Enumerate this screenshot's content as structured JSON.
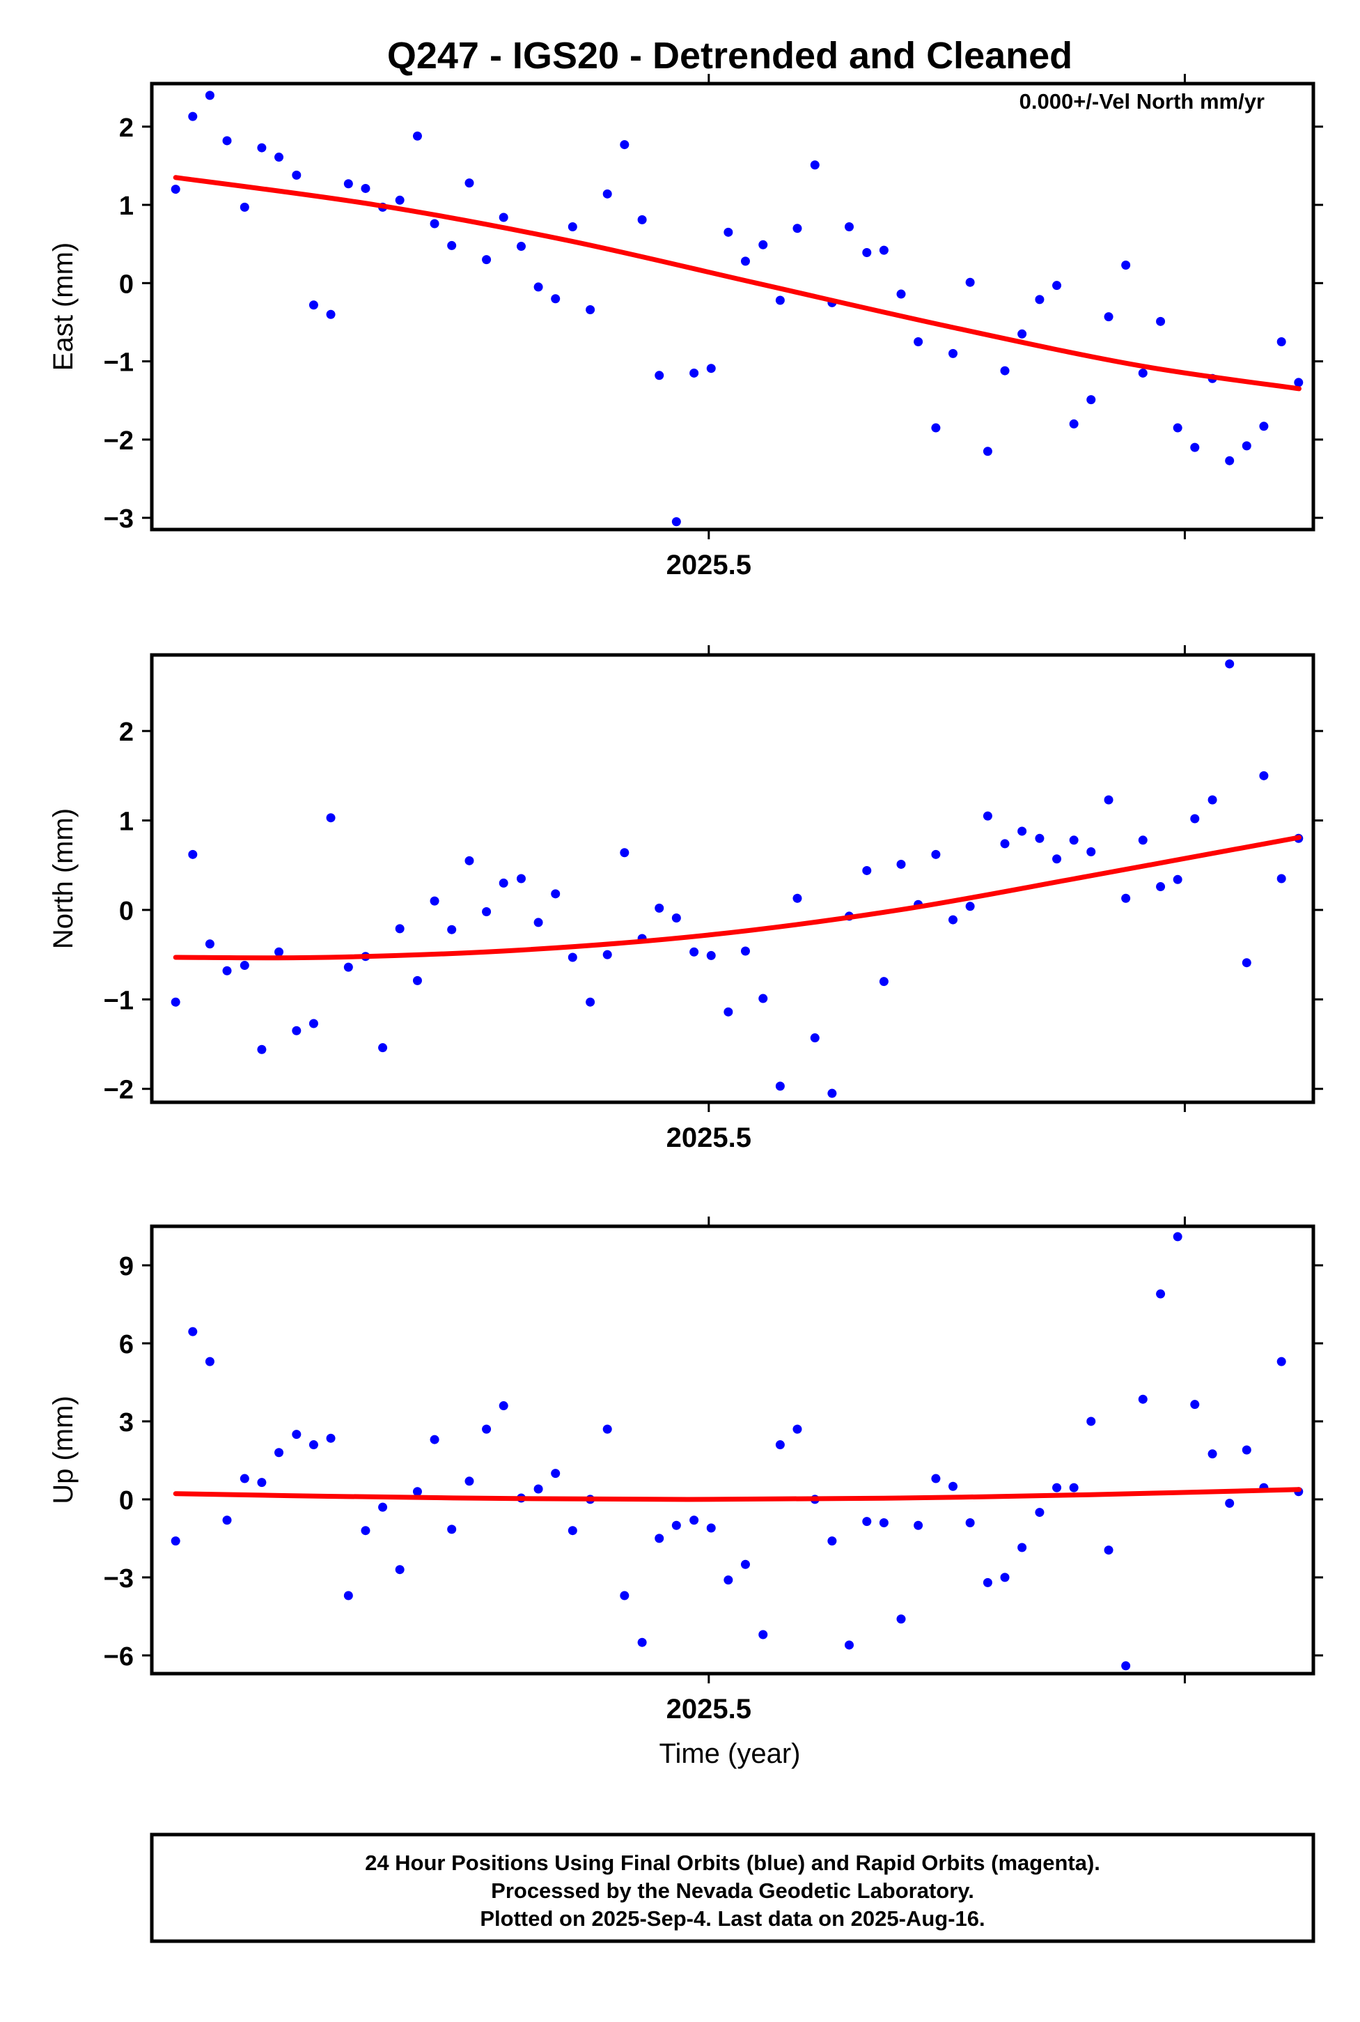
{
  "figure": {
    "title": "Q247 - IGS20 - Detrended and Cleaned",
    "xlabel": "Time (year)",
    "colors": {
      "final_points": "#0000ff",
      "fit_curve": "#ff0000",
      "frame": "#000000"
    },
    "footer": [
      "24 Hour Positions Using Final Orbits (blue) and Rapid Orbits (magenta).",
      "Processed by the Nevada Geodetic Laboratory.",
      "Plotted on 2025-Sep-4. Last data on 2025-Aug-16."
    ]
  },
  "chart_data": [
    {
      "type": "scatter",
      "panel": "east",
      "ylabel": "East (mm)",
      "annotation": "0.000+/-Vel North mm/yr",
      "xlim": [
        2025.383,
        2025.627
      ],
      "ylim": [
        -3.15,
        2.55
      ],
      "yticks": [
        -3,
        -2,
        -1,
        0,
        1,
        2
      ],
      "xticks": [
        2025.5
      ],
      "xtick_labels": [
        "2025.5"
      ],
      "xticks_unlabeled": [
        2025.6
      ],
      "series": [
        {
          "points": [
            [
              2025.388,
              1.2
            ],
            [
              2025.3916,
              2.13
            ],
            [
              2025.3952,
              2.4
            ],
            [
              2025.3988,
              1.82
            ],
            [
              2025.4025,
              0.97
            ],
            [
              2025.4061,
              1.73
            ],
            [
              2025.4097,
              1.61
            ],
            [
              2025.4134,
              1.38
            ],
            [
              2025.417,
              -0.28
            ],
            [
              2025.4206,
              -0.4
            ],
            [
              2025.4243,
              1.27
            ],
            [
              2025.4279,
              1.21
            ],
            [
              2025.4315,
              0.97
            ],
            [
              2025.4351,
              1.06
            ],
            [
              2025.4388,
              1.88
            ],
            [
              2025.4424,
              0.76
            ],
            [
              2025.446,
              0.48
            ],
            [
              2025.4497,
              1.28
            ],
            [
              2025.4533,
              0.3
            ],
            [
              2025.4569,
              0.84
            ],
            [
              2025.4606,
              0.47
            ],
            [
              2025.4642,
              -0.05
            ],
            [
              2025.4678,
              -0.2
            ],
            [
              2025.4714,
              0.72
            ],
            [
              2025.4751,
              -0.34
            ],
            [
              2025.4787,
              1.14
            ],
            [
              2025.4823,
              1.77
            ],
            [
              2025.486,
              0.81
            ],
            [
              2025.4896,
              -1.18
            ],
            [
              2025.4932,
              -3.05
            ],
            [
              2025.4969,
              -1.15
            ],
            [
              2025.5005,
              -1.09
            ],
            [
              2025.5041,
              0.65
            ],
            [
              2025.5077,
              0.28
            ],
            [
              2025.5114,
              0.49
            ],
            [
              2025.515,
              -0.22
            ],
            [
              2025.5186,
              0.7
            ],
            [
              2025.5223,
              1.51
            ],
            [
              2025.5259,
              -0.25
            ],
            [
              2025.5295,
              0.72
            ],
            [
              2025.5332,
              0.39
            ],
            [
              2025.5368,
              0.42
            ],
            [
              2025.5404,
              -0.14
            ],
            [
              2025.544,
              -0.75
            ],
            [
              2025.5477,
              -1.85
            ],
            [
              2025.5513,
              -0.9
            ],
            [
              2025.5549,
              0.01
            ],
            [
              2025.5586,
              -2.15
            ],
            [
              2025.5622,
              -1.12
            ],
            [
              2025.5658,
              -0.65
            ],
            [
              2025.5695,
              -0.21
            ],
            [
              2025.5731,
              -0.03
            ],
            [
              2025.5767,
              -1.8
            ],
            [
              2025.5803,
              -1.49
            ],
            [
              2025.584,
              -0.43
            ],
            [
              2025.5876,
              0.23
            ],
            [
              2025.5912,
              -1.15
            ],
            [
              2025.5949,
              -0.49
            ],
            [
              2025.5985,
              -1.85
            ],
            [
              2025.6021,
              -2.1
            ],
            [
              2025.6058,
              -1.22
            ],
            [
              2025.6094,
              -2.27
            ],
            [
              2025.613,
              -2.08
            ],
            [
              2025.6166,
              -1.83
            ],
            [
              2025.6203,
              -0.75
            ],
            [
              2025.6239,
              -1.27
            ]
          ]
        }
      ],
      "fit": {
        "x": [
          2025.388,
          2025.43,
          2025.47,
          2025.51,
          2025.55,
          2025.59,
          2025.624
        ],
        "y": [
          1.35,
          1.0,
          0.55,
          0.0,
          -0.55,
          -1.05,
          -1.35
        ]
      }
    },
    {
      "type": "scatter",
      "panel": "north",
      "ylabel": "North (mm)",
      "xlim": [
        2025.383,
        2025.627
      ],
      "ylim": [
        -2.15,
        2.85
      ],
      "yticks": [
        -2,
        -1,
        0,
        1,
        2
      ],
      "xticks": [
        2025.5
      ],
      "xtick_labels": [
        "2025.5"
      ],
      "xticks_unlabeled": [
        2025.6
      ],
      "series": [
        {
          "points": [
            [
              2025.388,
              -1.03
            ],
            [
              2025.3916,
              0.62
            ],
            [
              2025.3952,
              -0.38
            ],
            [
              2025.3988,
              -0.68
            ],
            [
              2025.4025,
              -0.62
            ],
            [
              2025.4061,
              -1.56
            ],
            [
              2025.4097,
              -0.47
            ],
            [
              2025.4134,
              -1.35
            ],
            [
              2025.417,
              -1.27
            ],
            [
              2025.4206,
              1.03
            ],
            [
              2025.4243,
              -0.64
            ],
            [
              2025.4279,
              -0.52
            ],
            [
              2025.4315,
              -1.54
            ],
            [
              2025.4351,
              -0.21
            ],
            [
              2025.4388,
              -0.79
            ],
            [
              2025.4424,
              0.1
            ],
            [
              2025.446,
              -0.22
            ],
            [
              2025.4497,
              0.55
            ],
            [
              2025.4533,
              -0.02
            ],
            [
              2025.4569,
              0.3
            ],
            [
              2025.4606,
              0.35
            ],
            [
              2025.4642,
              -0.14
            ],
            [
              2025.4678,
              0.18
            ],
            [
              2025.4714,
              -0.53
            ],
            [
              2025.4751,
              -1.03
            ],
            [
              2025.4787,
              -0.5
            ],
            [
              2025.4823,
              0.64
            ],
            [
              2025.486,
              -0.32
            ],
            [
              2025.4896,
              0.02
            ],
            [
              2025.4932,
              -0.09
            ],
            [
              2025.4969,
              -0.47
            ],
            [
              2025.5005,
              -0.51
            ],
            [
              2025.5041,
              -1.14
            ],
            [
              2025.5077,
              -0.46
            ],
            [
              2025.5114,
              -0.99
            ],
            [
              2025.515,
              -1.97
            ],
            [
              2025.5186,
              0.13
            ],
            [
              2025.5223,
              -1.43
            ],
            [
              2025.5259,
              -2.05
            ],
            [
              2025.5295,
              -0.07
            ],
            [
              2025.5332,
              0.44
            ],
            [
              2025.5368,
              -0.8
            ],
            [
              2025.5404,
              0.51
            ],
            [
              2025.544,
              0.06
            ],
            [
              2025.5477,
              0.62
            ],
            [
              2025.5513,
              -0.11
            ],
            [
              2025.5549,
              0.04
            ],
            [
              2025.5586,
              1.05
            ],
            [
              2025.5622,
              0.74
            ],
            [
              2025.5658,
              0.88
            ],
            [
              2025.5695,
              0.8
            ],
            [
              2025.5731,
              0.57
            ],
            [
              2025.5767,
              0.78
            ],
            [
              2025.5803,
              0.65
            ],
            [
              2025.584,
              1.23
            ],
            [
              2025.5876,
              0.13
            ],
            [
              2025.5912,
              0.78
            ],
            [
              2025.5949,
              0.26
            ],
            [
              2025.5985,
              0.34
            ],
            [
              2025.6021,
              1.02
            ],
            [
              2025.6058,
              1.23
            ],
            [
              2025.6094,
              2.75
            ],
            [
              2025.613,
              -0.59
            ],
            [
              2025.6166,
              1.5
            ],
            [
              2025.6203,
              0.35
            ],
            [
              2025.6239,
              0.8
            ]
          ]
        }
      ],
      "fit": {
        "x": [
          2025.388,
          2025.42,
          2025.46,
          2025.5,
          2025.54,
          2025.58,
          2025.624
        ],
        "y": [
          -0.53,
          -0.53,
          -0.45,
          -0.28,
          0.0,
          0.38,
          0.81
        ]
      }
    },
    {
      "type": "scatter",
      "panel": "up",
      "ylabel": "Up (mm)",
      "xlim": [
        2025.383,
        2025.627
      ],
      "ylim": [
        -6.7,
        10.5
      ],
      "yticks": [
        -6,
        -3,
        0,
        3,
        6,
        9
      ],
      "xticks": [
        2025.5
      ],
      "xtick_labels": [
        "2025.5"
      ],
      "xticks_unlabeled": [
        2025.6
      ],
      "series": [
        {
          "points": [
            [
              2025.388,
              -1.6
            ],
            [
              2025.3916,
              6.45
            ],
            [
              2025.3952,
              5.3
            ],
            [
              2025.3988,
              -0.8
            ],
            [
              2025.4025,
              0.8
            ],
            [
              2025.4061,
              0.65
            ],
            [
              2025.4097,
              1.8
            ],
            [
              2025.4134,
              2.5
            ],
            [
              2025.417,
              2.1
            ],
            [
              2025.4206,
              2.35
            ],
            [
              2025.4243,
              -3.7
            ],
            [
              2025.4279,
              -1.2
            ],
            [
              2025.4315,
              -0.3
            ],
            [
              2025.4351,
              -2.7
            ],
            [
              2025.4388,
              0.3
            ],
            [
              2025.4424,
              2.3
            ],
            [
              2025.446,
              -1.15
            ],
            [
              2025.4497,
              0.7
            ],
            [
              2025.4533,
              2.7
            ],
            [
              2025.4569,
              3.6
            ],
            [
              2025.4606,
              0.05
            ],
            [
              2025.4642,
              0.4
            ],
            [
              2025.4678,
              1.0
            ],
            [
              2025.4714,
              -1.2
            ],
            [
              2025.4751,
              0.0
            ],
            [
              2025.4787,
              2.7
            ],
            [
              2025.4823,
              -3.7
            ],
            [
              2025.486,
              -5.5
            ],
            [
              2025.4896,
              -1.5
            ],
            [
              2025.4932,
              -1.0
            ],
            [
              2025.4969,
              -0.8
            ],
            [
              2025.5005,
              -1.1
            ],
            [
              2025.5041,
              -3.1
            ],
            [
              2025.5077,
              -2.5
            ],
            [
              2025.5114,
              -5.2
            ],
            [
              2025.515,
              2.1
            ],
            [
              2025.5186,
              2.7
            ],
            [
              2025.5223,
              0.0
            ],
            [
              2025.5259,
              -1.6
            ],
            [
              2025.5295,
              -5.6
            ],
            [
              2025.5332,
              -0.85
            ],
            [
              2025.5368,
              -0.9
            ],
            [
              2025.5404,
              -4.6
            ],
            [
              2025.544,
              -1.0
            ],
            [
              2025.5477,
              0.8
            ],
            [
              2025.5513,
              0.5
            ],
            [
              2025.5549,
              -0.9
            ],
            [
              2025.5586,
              -3.2
            ],
            [
              2025.5622,
              -3.0
            ],
            [
              2025.5658,
              -1.85
            ],
            [
              2025.5695,
              -0.5
            ],
            [
              2025.5731,
              0.45
            ],
            [
              2025.5767,
              0.45
            ],
            [
              2025.5803,
              3.0
            ],
            [
              2025.584,
              -1.95
            ],
            [
              2025.5876,
              -6.4
            ],
            [
              2025.5912,
              3.85
            ],
            [
              2025.5949,
              7.9
            ],
            [
              2025.5985,
              10.1
            ],
            [
              2025.6021,
              3.65
            ],
            [
              2025.6058,
              1.75
            ],
            [
              2025.6094,
              -0.15
            ],
            [
              2025.613,
              1.9
            ],
            [
              2025.6166,
              0.45
            ],
            [
              2025.6203,
              5.3
            ],
            [
              2025.6239,
              0.3
            ]
          ]
        }
      ],
      "fit": {
        "x": [
          2025.388,
          2025.42,
          2025.46,
          2025.5,
          2025.54,
          2025.58,
          2025.624
        ],
        "y": [
          0.22,
          0.12,
          0.03,
          0.0,
          0.05,
          0.18,
          0.38
        ]
      }
    }
  ]
}
